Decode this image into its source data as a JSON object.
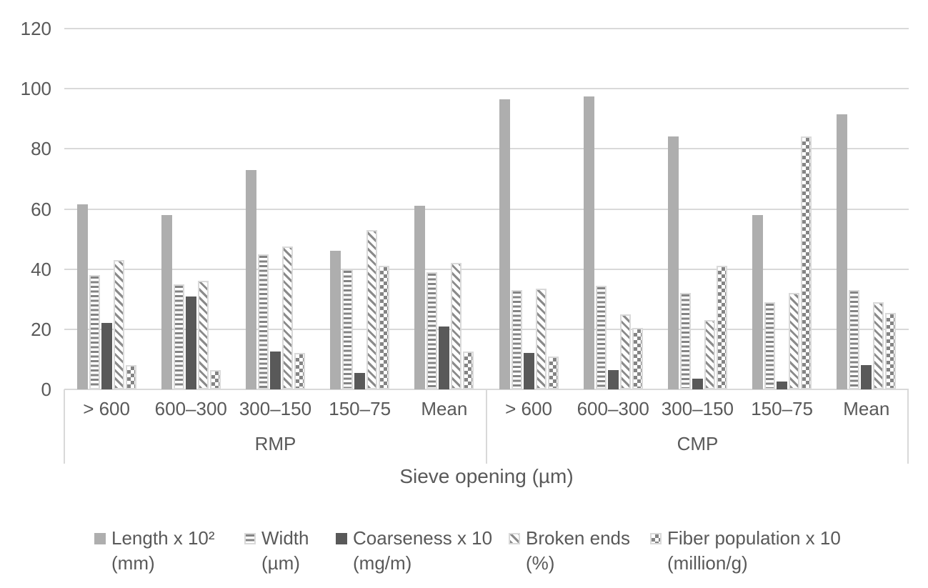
{
  "colors": {
    "background": "#ffffff",
    "text": "#595959",
    "gridline": "#d9d9d9",
    "bar_solid_light": "#aeaeae",
    "bar_solid_dark": "#595959",
    "pattern_gray": "#848484",
    "pattern_border": "#d9d9d9"
  },
  "chart_data": {
    "type": "bar",
    "title": "",
    "xlabel": "Sieve opening (µm)",
    "ylabel": "",
    "ylim": [
      0,
      120
    ],
    "yticks": [
      0,
      20,
      40,
      60,
      80,
      100,
      120
    ],
    "grid": "horizontal",
    "legend_position": "bottom",
    "group_labels": [
      "RMP",
      "CMP"
    ],
    "categories": [
      "> 600",
      "600–300",
      "300–150",
      "150–75",
      "Mean",
      "> 600",
      "600–300",
      "300–150",
      "150–75",
      "Mean"
    ],
    "series": [
      {
        "key": "length",
        "name": "Length x 10² (mm)",
        "pattern": "solid-light",
        "values": [
          61.5,
          58,
          73,
          46,
          61,
          96.5,
          97.5,
          84,
          58,
          91.5
        ]
      },
      {
        "key": "width",
        "name": "Width (µm)",
        "pattern": "hstripe",
        "values": [
          38,
          35,
          45,
          40,
          39,
          33,
          34.5,
          32,
          29,
          33
        ]
      },
      {
        "key": "coarseness",
        "name": "Coarseness x 10 (mg/m)",
        "pattern": "solid-dark",
        "values": [
          22,
          31,
          12.5,
          5.5,
          21,
          12,
          6.5,
          3.5,
          2.5,
          8
        ]
      },
      {
        "key": "broken-ends",
        "name": "Broken ends (%)",
        "pattern": "diag",
        "values": [
          43,
          36,
          47.5,
          53,
          42,
          33.5,
          25,
          23,
          32,
          29
        ]
      },
      {
        "key": "fiber-population",
        "name": "Fiber population x 10 (million/g)",
        "pattern": "checker",
        "values": [
          8,
          6.5,
          12,
          41,
          12.5,
          11,
          20.5,
          41,
          84,
          25.5
        ]
      }
    ]
  },
  "legend": {
    "items": [
      {
        "key": "length",
        "line1": "Length x 10²",
        "line2": "(mm)",
        "pattern": "solid-light"
      },
      {
        "key": "width",
        "line1": "Width",
        "line2": "(µm)",
        "pattern": "hstripe"
      },
      {
        "key": "coarseness",
        "line1": "Coarseness x 10",
        "line2": "(mg/m)",
        "pattern": "solid-dark"
      },
      {
        "key": "broken-ends",
        "line1": "Broken ends",
        "line2": "(%)",
        "pattern": "diag"
      },
      {
        "key": "fiber-population",
        "line1": "Fiber population x 10",
        "line2": "(million/g)",
        "pattern": "checker"
      }
    ]
  }
}
